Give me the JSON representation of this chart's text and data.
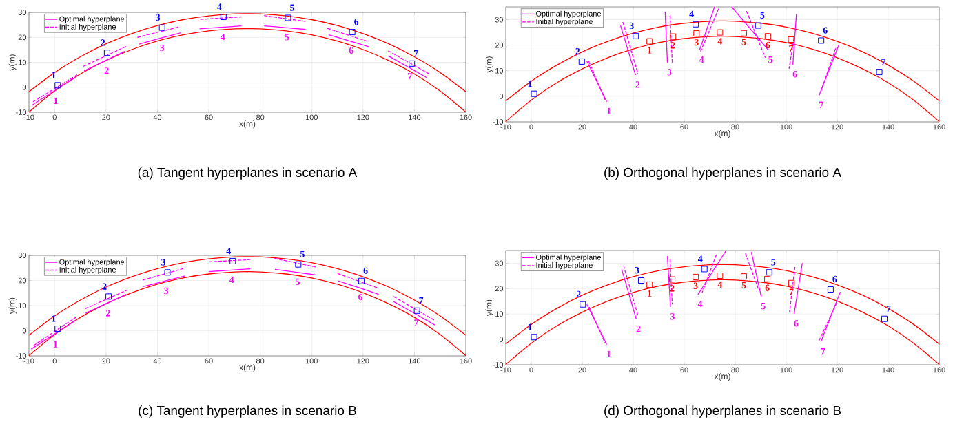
{
  "chart_data": [
    {
      "type": "line",
      "title": "(a) Tangent hyperplanes in scenario A",
      "xlabel": "x(m)",
      "ylabel": "y(m)",
      "xlim": [
        -10,
        160
      ],
      "ylim": [
        -10,
        30
      ],
      "xticks": [
        -10,
        0,
        20,
        40,
        60,
        80,
        100,
        120,
        140,
        160
      ],
      "yticks": [
        -10,
        0,
        10,
        20,
        30
      ],
      "grid": true,
      "legend": "top left",
      "series": [
        {
          "color": "#ff0000",
          "x": [
            -10,
            0,
            10,
            20,
            30,
            40,
            50,
            60,
            70,
            75,
            80,
            90,
            100,
            110,
            120,
            130,
            140,
            150,
            160
          ],
          "values": [
            -1.8,
            5.9,
            12.2,
            17.4,
            21.5,
            24.7,
            27.1,
            28.6,
            29.4,
            29.5,
            29.4,
            28.6,
            27.1,
            24.7,
            21.5,
            17.4,
            12.2,
            5.9,
            -1.8
          ]
        },
        {
          "color": "#ff0000",
          "x": [
            -10,
            0,
            10,
            20,
            30,
            40,
            50,
            60,
            70,
            75,
            80,
            90,
            100,
            110,
            120,
            130,
            140,
            150,
            160
          ],
          "values": [
            -9.9,
            -1.5,
            5.3,
            10.7,
            15.1,
            18.5,
            21.0,
            22.6,
            23.4,
            23.5,
            23.4,
            22.6,
            21.0,
            18.5,
            15.1,
            10.7,
            5.3,
            -1.5,
            -9.9
          ]
        },
        {
          "name": "Optimal hyperplane",
          "color": "#ff00ff",
          "x": [
            -9,
            -0.4,
            8.3
          ],
          "values": [
            -7.3,
            -1.6,
            4.1
          ]
        },
        {
          "name": "Initial hyperplane",
          "color": "#ff00ff",
          "line_style": "dashed",
          "x": [
            -8.4,
            8.8
          ],
          "values": [
            -5.8,
            5.0
          ]
        },
        {
          "color": "#ff00ff",
          "x": [
            11.5,
            19.4,
            27.3
          ],
          "values": [
            6.6,
            10.5,
            14.4
          ]
        },
        {
          "color": "#ff00ff",
          "x": [
            32.8,
            41,
            49.1
          ],
          "values": [
            17.3,
            19.6,
            21.8
          ]
        },
        {
          "color": "#ff00ff",
          "x": [
            56.4,
            64.6,
            72.7
          ],
          "values": [
            23.4,
            24,
            24.6
          ]
        },
        {
          "color": "#ff00ff",
          "x": [
            81.5,
            89.6,
            97.6
          ],
          "values": [
            24.6,
            23.9,
            23.2
          ]
        },
        {
          "color": "#ff00ff",
          "x": [
            106.7,
            114.6,
            122.4
          ],
          "values": [
            21.0,
            18.6,
            16.2
          ]
        },
        {
          "color": "#ff00ff",
          "x": [
            129.8,
            137.4,
            144.9
          ],
          "values": [
            12.6,
            8.2,
            3.8
          ]
        },
        {
          "color": "#ff00ff",
          "line_style": "dashed",
          "x": [
            11.2,
            27.9
          ],
          "values": [
            8.4,
            16.4
          ]
        },
        {
          "color": "#ff00ff",
          "line_style": "dashed",
          "x": [
            32.2,
            48.5
          ],
          "values": [
            20.0,
            24.2
          ]
        },
        {
          "color": "#ff00ff",
          "line_style": "dashed",
          "x": [
            56.7,
            72.7
          ],
          "values": [
            27.2,
            28.2
          ]
        },
        {
          "color": "#ff00ff",
          "line_style": "dashed",
          "x": [
            81.5,
            97.6
          ],
          "values": [
            28.7,
            26.4
          ]
        },
        {
          "color": "#ff00ff",
          "line_style": "dashed",
          "x": [
            106.1,
            122.4
          ],
          "values": [
            23.6,
            18.2
          ]
        },
        {
          "color": "#ff00ff",
          "line_style": "dashed",
          "x": [
            129.8,
            145.8
          ],
          "values": [
            14.6,
            5.3
          ]
        },
        {
          "type": "scatter",
          "marker": "square",
          "color": "#0000ff",
          "x": [
            1.2,
            20.4,
            41.8,
            65.7,
            90.8,
            115.8,
            139
          ],
          "values": [
            0.8,
            13.8,
            23.9,
            28.2,
            27.8,
            22.1,
            9.5
          ]
        }
      ],
      "annotations": [
        {
          "text": "1",
          "x": 1.2,
          "y": 0.8
        },
        {
          "text": "2",
          "x": 20.4,
          "y": 13.8
        },
        {
          "text": "3",
          "x": 41.8,
          "y": 23.9
        },
        {
          "text": "4",
          "x": 65.7,
          "y": 28.2
        },
        {
          "text": "5",
          "x": 90.8,
          "y": 27.8
        },
        {
          "text": "6",
          "x": 115.8,
          "y": 22.1
        },
        {
          "text": "7",
          "x": 139,
          "y": 9.5
        },
        {
          "text": "1",
          "x": -0.4,
          "y": -1.6
        },
        {
          "text": "2",
          "x": 19.4,
          "y": 10.5
        },
        {
          "text": "3",
          "x": 41,
          "y": 19.6
        },
        {
          "text": "4",
          "x": 64.6,
          "y": 24
        },
        {
          "text": "5",
          "x": 89.6,
          "y": 23.9
        },
        {
          "text": "6",
          "x": 114.6,
          "y": 18.6
        },
        {
          "text": "7",
          "x": 137.4,
          "y": 8.2
        }
      ]
    },
    {
      "type": "line",
      "title": "(b) Orthogonal hyperplanes in scenario A",
      "xlabel": "x(m)",
      "ylabel": "y(m)",
      "xlim": [
        -10,
        160
      ],
      "ylim": [
        -10,
        35
      ],
      "xticks": [
        -10,
        0,
        20,
        40,
        60,
        80,
        100,
        120,
        140,
        160
      ],
      "yticks": [
        -10,
        0,
        10,
        20,
        30
      ],
      "grid": true,
      "legend": "top left",
      "series": [
        {
          "color": "#ff0000",
          "x": [
            -10,
            0,
            10,
            20,
            30,
            40,
            50,
            60,
            70,
            75,
            80,
            90,
            100,
            110,
            120,
            130,
            140,
            150,
            160
          ],
          "values": [
            -1.8,
            5.9,
            12.2,
            17.4,
            21.5,
            24.7,
            27.1,
            28.6,
            29.4,
            29.5,
            29.4,
            28.6,
            27.1,
            24.7,
            21.5,
            17.4,
            12.2,
            5.9,
            -1.8
          ]
        },
        {
          "color": "#ff0000",
          "x": [
            -10,
            0,
            10,
            20,
            30,
            40,
            50,
            60,
            70,
            75,
            80,
            90,
            100,
            110,
            120,
            130,
            140,
            150,
            160
          ],
          "values": [
            -9.9,
            -1.5,
            5.3,
            10.7,
            15.1,
            18.5,
            21.0,
            22.6,
            23.4,
            23.5,
            23.4,
            22.6,
            21.0,
            18.5,
            15.1,
            10.7,
            5.3,
            -1.5,
            -9.9
          ]
        },
        {
          "name": "Optimal hyperplane",
          "color": "#ff00ff",
          "x": [
            21.8,
            29.6
          ],
          "values": [
            13.8,
            -2.1
          ]
        },
        {
          "name": "Initial hyperplane",
          "color": "#ff00ff",
          "line_style": "dashed",
          "x": [
            22.5,
            29
          ],
          "values": [
            13.8,
            -1.5
          ]
        },
        {
          "color": "#ff00ff",
          "x": [
            35,
            40.9
          ],
          "values": [
            27.7,
            8.3
          ]
        },
        {
          "color": "#ff00ff",
          "x": [
            52.5,
            53.4
          ],
          "values": [
            33.1,
            13.2
          ]
        },
        {
          "color": "#ff00ff",
          "x": [
            71.9,
            66
          ],
          "values": [
            35,
            18.1
          ]
        },
        {
          "color": "#ff00ff",
          "x": [
            78.6,
            93
          ],
          "values": [
            35,
            18.1
          ]
        },
        {
          "color": "#ff00ff",
          "x": [
            104,
            102.6
          ],
          "values": [
            32.2,
            12.4
          ]
        },
        {
          "color": "#ff00ff",
          "x": [
            120.6,
            112.9
          ],
          "values": [
            20,
            0.4
          ]
        },
        {
          "color": "#ff00ff",
          "line_style": "dashed",
          "x": [
            35.9,
            41.8
          ],
          "values": [
            29.1,
            9
          ]
        },
        {
          "color": "#ff00ff",
          "line_style": "dashed",
          "x": [
            54.4,
            55.3
          ],
          "values": [
            31.6,
            13.2
          ]
        },
        {
          "color": "#ff00ff",
          "line_style": "dashed",
          "x": [
            73.5,
            66.4
          ],
          "values": [
            34.3,
            17.5
          ]
        },
        {
          "color": "#ff00ff",
          "line_style": "dashed",
          "x": [
            84.4,
            91.8
          ],
          "values": [
            33.4,
            15.1
          ]
        },
        {
          "color": "#ff00ff",
          "line_style": "dashed",
          "x": [
            103.1,
            101.1
          ],
          "values": [
            23,
            10.8
          ]
        },
        {
          "color": "#ff00ff",
          "line_style": "dashed",
          "x": [
            119.4,
            113.3
          ],
          "values": [
            18.8,
            1
          ]
        },
        {
          "type": "scatter",
          "marker": "square",
          "color": "#0000ff",
          "x": [
            1.1,
            19.8,
            41,
            64.5,
            89,
            113.7,
            136.5
          ],
          "values": [
            1.0,
            13.6,
            23.6,
            28.2,
            27.7,
            21.8,
            9.5
          ]
        },
        {
          "type": "scatter",
          "marker": "square",
          "color": "#ff0000",
          "x": [
            46.4,
            55.6,
            64.8,
            74,
            83.4,
            92.8,
            101.9
          ],
          "values": [
            21.5,
            23.4,
            24.6,
            25,
            24.7,
            23.5,
            22.2
          ]
        }
      ],
      "annotations": [
        {
          "text": "1",
          "x": 1.1,
          "y": 1.0
        },
        {
          "text": "2",
          "x": 19.8,
          "y": 13.6
        },
        {
          "text": "3",
          "x": 41,
          "y": 23.6
        },
        {
          "text": "4",
          "x": 64.5,
          "y": 28.2
        },
        {
          "text": "5",
          "x": 89,
          "y": 27.7
        },
        {
          "text": "6",
          "x": 113.7,
          "y": 21.8
        },
        {
          "text": "7",
          "x": 136.5,
          "y": 9.5
        },
        {
          "text": "1",
          "x": 46.4,
          "y": 21.5
        },
        {
          "text": "2",
          "x": 55.6,
          "y": 23.4
        },
        {
          "text": "3",
          "x": 64.8,
          "y": 24.6
        },
        {
          "text": "4",
          "x": 74,
          "y": 25
        },
        {
          "text": "5",
          "x": 83.4,
          "y": 24.7
        },
        {
          "text": "6",
          "x": 92.8,
          "y": 23.5
        },
        {
          "text": "7",
          "x": 101.9,
          "y": 22.2
        },
        {
          "text": "1",
          "x": 29.6,
          "y": -2.1
        },
        {
          "text": "2",
          "x": 40.9,
          "y": 8.3
        },
        {
          "text": "3",
          "x": 53.4,
          "y": 13.2
        },
        {
          "text": "4",
          "x": 66,
          "y": 18.1
        },
        {
          "text": "5",
          "x": 93,
          "y": 18.1
        },
        {
          "text": "6",
          "x": 102.6,
          "y": 12.4
        },
        {
          "text": "7",
          "x": 112.9,
          "y": 0.4
        }
      ]
    },
    {
      "type": "line",
      "title": "(c) Tangent hyperplanes in scenario B",
      "xlabel": "x(m)",
      "ylabel": "y(m)",
      "xlim": [
        -10,
        160
      ],
      "ylim": [
        -10,
        30
      ],
      "xticks": [
        -10,
        0,
        20,
        40,
        60,
        80,
        100,
        120,
        140,
        160
      ],
      "yticks": [
        -10,
        0,
        10,
        20,
        30
      ],
      "grid": true,
      "legend": "top left",
      "series": [
        {
          "color": "#ff0000",
          "x": [
            -10,
            0,
            10,
            20,
            30,
            40,
            50,
            60,
            70,
            75,
            80,
            90,
            100,
            110,
            120,
            130,
            140,
            150,
            160
          ],
          "values": [
            -1.8,
            5.9,
            12.2,
            17.4,
            21.5,
            24.7,
            27.1,
            28.6,
            29.4,
            29.5,
            29.4,
            28.6,
            27.1,
            24.7,
            21.5,
            17.4,
            12.2,
            5.9,
            -1.8
          ]
        },
        {
          "color": "#ff0000",
          "x": [
            -10,
            0,
            10,
            20,
            30,
            40,
            50,
            60,
            70,
            75,
            80,
            90,
            100,
            110,
            120,
            130,
            140,
            150,
            160
          ],
          "values": [
            -9.9,
            -1.5,
            5.3,
            10.7,
            15.1,
            18.5,
            21.0,
            22.6,
            23.4,
            23.5,
            23.4,
            22.6,
            21.0,
            18.5,
            15.1,
            10.7,
            5.3,
            -1.5,
            -9.9
          ]
        },
        {
          "name": "Optimal hyperplane",
          "color": "#ff00ff",
          "x": [
            -9.1,
            -0.5,
            8.2
          ],
          "values": [
            -7.3,
            -1.6,
            4.1
          ]
        },
        {
          "name": "Initial hyperplane",
          "color": "#ff00ff",
          "line_style": "dashed",
          "x": [
            -8.2,
            8.2
          ],
          "values": [
            -5.9,
            5.3
          ]
        },
        {
          "color": "#ff00ff",
          "x": [
            12.1,
            20,
            27.9
          ],
          "values": [
            7,
            10.8,
            14.5
          ]
        },
        {
          "color": "#ff00ff",
          "x": [
            34.4,
            42.6,
            50.7
          ],
          "values": [
            17.6,
            19.7,
            21.8
          ]
        },
        {
          "color": "#ff00ff",
          "x": [
            60,
            68.1,
            76.1
          ],
          "values": [
            23.5,
            24.1,
            24.6
          ]
        },
        {
          "color": "#ff00ff",
          "x": [
            85.7,
            93.8,
            101.8
          ],
          "values": [
            24.4,
            23.3,
            22.2
          ]
        },
        {
          "color": "#ff00ff",
          "x": [
            110.3,
            118.2,
            126.1
          ],
          "values": [
            19.8,
            17.2,
            14.5
          ]
        },
        {
          "color": "#ff00ff",
          "x": [
            131.9,
            139.9,
            147.9
          ],
          "values": [
            11.6,
            7,
            2.3
          ]
        },
        {
          "color": "#ff00ff",
          "line_style": "dashed",
          "x": [
            11.9,
            28.5
          ],
          "values": [
            8.8,
            16.3
          ]
        },
        {
          "color": "#ff00ff",
          "line_style": "dashed",
          "x": [
            34.4,
            50.9
          ],
          "values": [
            20.2,
            25
          ]
        },
        {
          "color": "#ff00ff",
          "line_style": "dashed",
          "x": [
            60,
            76.1
          ],
          "values": [
            27.4,
            28.3
          ]
        },
        {
          "color": "#ff00ff",
          "line_style": "dashed",
          "x": [
            85.5,
            101.8
          ],
          "values": [
            28.8,
            25.3
          ]
        },
        {
          "color": "#ff00ff",
          "line_style": "dashed",
          "x": [
            110.1,
            126.1
          ],
          "values": [
            22.8,
            16.9
          ]
        },
        {
          "color": "#ff00ff",
          "line_style": "dashed",
          "x": [
            131.9,
            147.9
          ],
          "values": [
            13.6,
            4.1
          ]
        },
        {
          "type": "scatter",
          "marker": "square",
          "color": "#0000ff",
          "x": [
            1.2,
            21,
            43.9,
            69.3,
            94.8,
            119.4,
            141
          ],
          "values": [
            0.8,
            13.6,
            23.2,
            27.7,
            26.4,
            19.8,
            8
          ]
        }
      ],
      "annotations": [
        {
          "text": "1",
          "x": 1.2,
          "y": 0.8
        },
        {
          "text": "2",
          "x": 21,
          "y": 13.6
        },
        {
          "text": "3",
          "x": 43.9,
          "y": 23.2
        },
        {
          "text": "4",
          "x": 69.3,
          "y": 27.7
        },
        {
          "text": "5",
          "x": 94.8,
          "y": 26.4
        },
        {
          "text": "6",
          "x": 119.4,
          "y": 19.8
        },
        {
          "text": "7",
          "x": 141,
          "y": 8
        },
        {
          "text": "1",
          "x": -0.5,
          "y": -1.6
        },
        {
          "text": "2",
          "x": 20,
          "y": 10.8
        },
        {
          "text": "3",
          "x": 42.6,
          "y": 19.7
        },
        {
          "text": "4",
          "x": 68.1,
          "y": 24.1
        },
        {
          "text": "5",
          "x": 93.8,
          "y": 23.3
        },
        {
          "text": "6",
          "x": 118.2,
          "y": 17.2
        },
        {
          "text": "7",
          "x": 139.9,
          "y": 7
        }
      ]
    },
    {
      "type": "line",
      "title": "(d) Orthogonal hyperplanes in scenario B",
      "xlabel": "x(m)",
      "ylabel": "y(m)",
      "xlim": [
        -10,
        160
      ],
      "ylim": [
        -10,
        35
      ],
      "xticks": [
        -10,
        0,
        20,
        40,
        60,
        80,
        100,
        120,
        140,
        160
      ],
      "yticks": [
        -10,
        0,
        10,
        20,
        30
      ],
      "grid": true,
      "legend": "top left",
      "series": [
        {
          "color": "#ff0000",
          "x": [
            -10,
            0,
            10,
            20,
            30,
            40,
            50,
            60,
            70,
            75,
            80,
            90,
            100,
            110,
            120,
            130,
            140,
            150,
            160
          ],
          "values": [
            -1.8,
            5.9,
            12.2,
            17.4,
            21.5,
            24.7,
            27.1,
            28.6,
            29.4,
            29.5,
            29.4,
            28.6,
            27.1,
            24.7,
            21.5,
            17.4,
            12.2,
            5.9,
            -1.8
          ]
        },
        {
          "color": "#ff0000",
          "x": [
            -10,
            0,
            10,
            20,
            30,
            40,
            50,
            60,
            70,
            75,
            80,
            90,
            100,
            110,
            120,
            130,
            140,
            150,
            160
          ],
          "values": [
            -9.9,
            -1.5,
            5.3,
            10.7,
            15.1,
            18.5,
            21.0,
            22.6,
            23.4,
            23.5,
            23.4,
            22.6,
            21.0,
            18.5,
            15.1,
            10.7,
            5.3,
            -1.5,
            -9.9
          ]
        },
        {
          "name": "Optimal hyperplane",
          "color": "#ff00ff",
          "x": [
            21.8,
            29.6
          ],
          "values": [
            13.8,
            -2
          ]
        },
        {
          "name": "Initial hyperplane",
          "color": "#ff00ff",
          "line_style": "dashed",
          "x": [
            22.7,
            29
          ],
          "values": [
            12.8,
            -1.6
          ]
        },
        {
          "color": "#ff00ff",
          "x": [
            35.5,
            41.2
          ],
          "values": [
            27.5,
            7.9
          ]
        },
        {
          "color": "#ff00ff",
          "x": [
            53.4,
            54.6
          ],
          "values": [
            32.8,
            12.8
          ]
        },
        {
          "color": "#ff00ff",
          "x": [
            76.4,
            65.4
          ],
          "values": [
            35,
            17.7
          ]
        },
        {
          "color": "#ff00ff",
          "x": [
            86.3,
            90.2
          ],
          "values": [
            34.4,
            16.9
          ]
        },
        {
          "color": "#ff00ff",
          "x": [
            106.3,
            103.1
          ],
          "values": [
            30,
            10.1
          ]
        },
        {
          "color": "#ff00ff",
          "x": [
            121.2,
            113.6
          ],
          "values": [
            18.7,
            -1
          ]
        },
        {
          "color": "#ff00ff",
          "line_style": "dashed",
          "x": [
            36.2,
            41.8
          ],
          "values": [
            29.1,
            9.5
          ]
        },
        {
          "color": "#ff00ff",
          "line_style": "dashed",
          "x": [
            54.4,
            55.3
          ],
          "values": [
            31.6,
            13.8
          ]
        },
        {
          "color": "#ff00ff",
          "line_style": "dashed",
          "x": [
            72.6,
            67
          ],
          "values": [
            33.4,
            18.4
          ]
        },
        {
          "color": "#ff00ff",
          "line_style": "dashed",
          "x": [
            84,
            89.3
          ],
          "values": [
            33.8,
            19.3
          ]
        },
        {
          "color": "#ff00ff",
          "line_style": "dashed",
          "x": [
            103.4,
            101.3
          ],
          "values": [
            28.5,
            10.7
          ]
        },
        {
          "color": "#ff00ff",
          "line_style": "dashed",
          "x": [
            119.8,
            112.9
          ],
          "values": [
            14.4,
            -0.4
          ]
        },
        {
          "type": "scatter",
          "marker": "square",
          "color": "#0000ff",
          "x": [
            1.1,
            20.2,
            43.1,
            67.9,
            93.3,
            117.4,
            138.5
          ],
          "values": [
            0.9,
            13.8,
            23.2,
            27.7,
            26.4,
            19.7,
            8.1
          ]
        },
        {
          "type": "scatter",
          "marker": "square",
          "color": "#ff0000",
          "x": [
            46.4,
            55.3,
            64.5,
            74,
            83.4,
            92.6,
            102
          ],
          "values": [
            21.6,
            23.6,
            24.6,
            25.1,
            24.8,
            23.8,
            22.2
          ]
        }
      ],
      "annotations": [
        {
          "text": "1",
          "x": 1.1,
          "y": 0.9
        },
        {
          "text": "2",
          "x": 20.2,
          "y": 13.8
        },
        {
          "text": "3",
          "x": 43.1,
          "y": 23.2
        },
        {
          "text": "4",
          "x": 67.9,
          "y": 27.7
        },
        {
          "text": "5",
          "x": 93.3,
          "y": 26.4
        },
        {
          "text": "6",
          "x": 117.4,
          "y": 19.7
        },
        {
          "text": "7",
          "x": 138.5,
          "y": 8.1
        },
        {
          "text": "1",
          "x": 46.4,
          "y": 21.6
        },
        {
          "text": "2",
          "x": 55.3,
          "y": 23.6
        },
        {
          "text": "3",
          "x": 64.5,
          "y": 24.6
        },
        {
          "text": "4",
          "x": 74,
          "y": 25.1
        },
        {
          "text": "5",
          "x": 83.4,
          "y": 24.8
        },
        {
          "text": "6",
          "x": 92.6,
          "y": 23.8
        },
        {
          "text": "7",
          "x": 102,
          "y": 22.2
        },
        {
          "text": "1",
          "x": 29.6,
          "y": -2
        },
        {
          "text": "2",
          "x": 41.2,
          "y": 7.9
        },
        {
          "text": "3",
          "x": 54.6,
          "y": 12.8
        },
        {
          "text": "4",
          "x": 65.4,
          "y": 17.7
        },
        {
          "text": "5",
          "x": 90.2,
          "y": 16.9
        },
        {
          "text": "6",
          "x": 103.1,
          "y": 10.1
        },
        {
          "text": "7",
          "x": 113.6,
          "y": -1
        }
      ]
    }
  ]
}
